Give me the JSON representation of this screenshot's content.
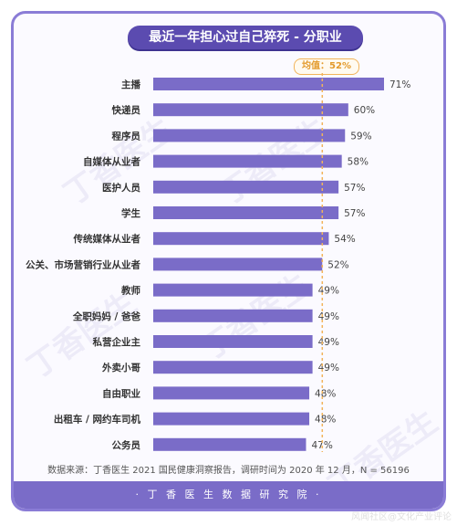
{
  "chart_data": {
    "type": "bar",
    "orientation": "horizontal",
    "title": "最近一年担心过自己猝死 - 分职业",
    "categories": [
      "主播",
      "快递员",
      "程序员",
      "自媒体从业者",
      "医护人员",
      "学生",
      "传统媒体从业者",
      "公关、市场营销行业从业者",
      "教师",
      "全职妈妈 / 爸爸",
      "私营企业主",
      "外卖小哥",
      "自由职业",
      "出租车 / 网约车司机",
      "公务员"
    ],
    "values": [
      71,
      60,
      59,
      58,
      57,
      57,
      54,
      52,
      49,
      49,
      49,
      49,
      48,
      48,
      47
    ],
    "value_labels": [
      "71%",
      "60%",
      "59%",
      "58%",
      "57%",
      "57%",
      "54%",
      "52%",
      "49%",
      "49%",
      "49%",
      "49%",
      "48%",
      "48%",
      "47%"
    ],
    "average": 52,
    "average_label": "均值：52%",
    "bar_color": "#7a6cc8",
    "average_line_color": "#f2b45a"
  },
  "source": "数据来源：丁香医生 2021 国民健康洞察报告，调研时间为 2020 年 12 月，N = 56196",
  "footer": "· 丁 香 医 生 数 据 研 究 院 ·",
  "watermark_text": "丁香医生",
  "corner_watermark": "风闻社区@文化产业评论"
}
